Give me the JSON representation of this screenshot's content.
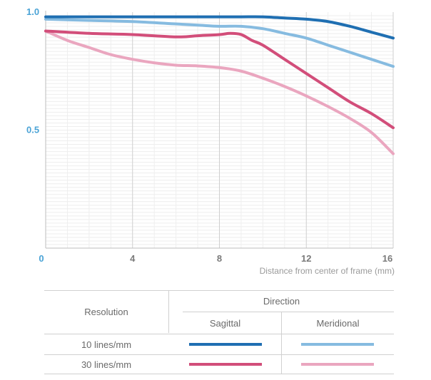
{
  "chart_data": {
    "type": "line",
    "title": "",
    "xlabel": "Distance from center of frame (mm)",
    "ylabel": "",
    "xlim": [
      0,
      16
    ],
    "ylim": [
      0.0,
      1.0
    ],
    "x_ticks": [
      "0",
      "4",
      "8",
      "12",
      "16"
    ],
    "y_ticks": [
      "1.0",
      "0.5"
    ],
    "grid": true,
    "series": [
      {
        "name": "10 lines/mm Sagittal",
        "color": "#1f6fb2",
        "x": [
          0,
          2,
          4,
          6,
          8,
          9,
          10,
          11,
          12,
          13,
          14,
          15,
          16
        ],
        "y": [
          0.98,
          0.98,
          0.98,
          0.98,
          0.98,
          0.98,
          0.98,
          0.975,
          0.97,
          0.96,
          0.94,
          0.915,
          0.89
        ]
      },
      {
        "name": "10 lines/mm Meridional",
        "color": "#86bbe0",
        "x": [
          0,
          2,
          4,
          6,
          7,
          8,
          9,
          10,
          11,
          12,
          13,
          14,
          15,
          16
        ],
        "y": [
          0.97,
          0.965,
          0.96,
          0.95,
          0.945,
          0.94,
          0.94,
          0.93,
          0.91,
          0.89,
          0.86,
          0.83,
          0.8,
          0.77
        ]
      },
      {
        "name": "30 lines/mm Sagittal",
        "color": "#d24e7a",
        "x": [
          0,
          2,
          4,
          6,
          7,
          8,
          8.5,
          9,
          9.5,
          10,
          11,
          12,
          13,
          14,
          15,
          16
        ],
        "y": [
          0.92,
          0.91,
          0.905,
          0.895,
          0.9,
          0.905,
          0.91,
          0.905,
          0.88,
          0.86,
          0.8,
          0.74,
          0.68,
          0.62,
          0.57,
          0.51
        ]
      },
      {
        "name": "30 lines/mm Meridional",
        "color": "#eaa6bf",
        "x": [
          0,
          1,
          2,
          3,
          4,
          5,
          6,
          7,
          8,
          9,
          10,
          11,
          12,
          13,
          14,
          15,
          16
        ],
        "y": [
          0.92,
          0.88,
          0.85,
          0.82,
          0.8,
          0.785,
          0.775,
          0.772,
          0.765,
          0.75,
          0.72,
          0.685,
          0.645,
          0.6,
          0.55,
          0.49,
          0.4
        ]
      }
    ]
  },
  "legend_table": {
    "col_header_resolution": "Resolution",
    "col_header_direction": "Direction",
    "sub_header_sagittal": "Sagittal",
    "sub_header_meridional": "Meridional",
    "rows": [
      {
        "label": "10 lines/mm",
        "sagittal_color": "#1f6fb2",
        "meridional_color": "#86bbe0"
      },
      {
        "label": "30 lines/mm",
        "sagittal_color": "#d24e7a",
        "meridional_color": "#eaa6bf"
      }
    ]
  }
}
